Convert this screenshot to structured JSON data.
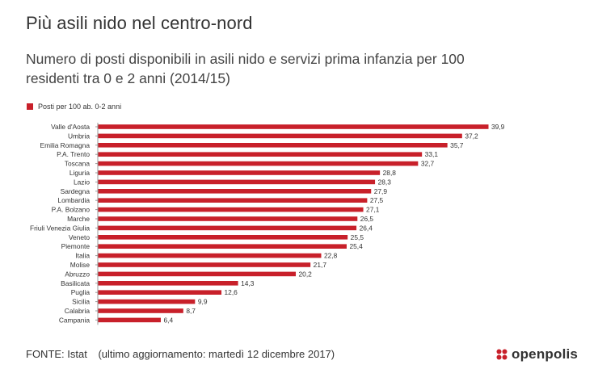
{
  "title": "Più asili nido nel centro-nord",
  "subtitle": "Numero di posti disponibili in asili nido e servizi prima infanzia per 100 residenti tra 0 e 2 anni (2014/15)",
  "colors": {
    "bar": "#c8202a",
    "axis": "#9a9a9a",
    "text": "#333333"
  },
  "chart_data": {
    "type": "bar",
    "orientation": "horizontal",
    "categories": [
      "Valle d'Aosta",
      "Umbria",
      "Emilia Romagna",
      "P.A. Trento",
      "Toscana",
      "Liguria",
      "Lazio",
      "Sardegna",
      "Lombardia",
      "P.A. Bolzano",
      "Marche",
      "Friuli Venezia Giulia",
      "Veneto",
      "Piemonte",
      "Italia",
      "Molise",
      "Abruzzo",
      "Basilicata",
      "Puglia",
      "Sicilia",
      "Calabria",
      "Campania"
    ],
    "series": [
      {
        "name": "Posti per 100 ab. 0-2 anni",
        "values": [
          39.9,
          37.2,
          35.7,
          33.1,
          32.7,
          28.8,
          28.3,
          27.9,
          27.5,
          27.1,
          26.5,
          26.4,
          25.5,
          25.4,
          22.8,
          21.7,
          20.2,
          14.3,
          12.6,
          9.9,
          8.7,
          6.4
        ],
        "labels": [
          "39,9",
          "37,2",
          "35,7",
          "33,1",
          "32,7",
          "28,8",
          "28,3",
          "27,9",
          "27,5",
          "27,1",
          "26,5",
          "26,4",
          "25,5",
          "25,4",
          "22,8",
          "21,7",
          "20,2",
          "14,3",
          "12,6",
          "9,9",
          "8,7",
          "6,4"
        ]
      }
    ],
    "xlim": [
      0,
      40
    ],
    "grid": false,
    "legend": "top-left"
  },
  "footer": {
    "source": "FONTE: Istat",
    "update": "(ultimo aggiornamento: martedì 12 dicembre 2017)"
  },
  "logo": {
    "text": "openpolis",
    "icon": "openpolis-logo-icon"
  }
}
